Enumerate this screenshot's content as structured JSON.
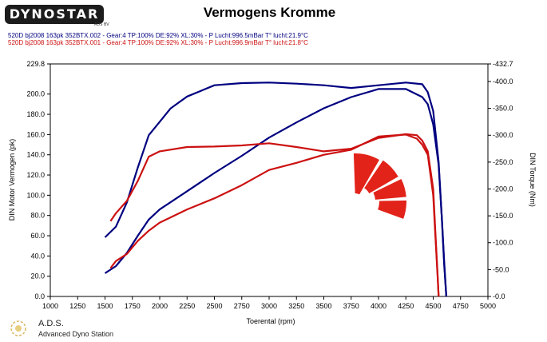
{
  "header": {
    "logo": "DYNOSTAR",
    "logo_sub": "ADS BV",
    "title": "Vermogens Kromme"
  },
  "legend": {
    "run1": "520D bj2008 163pk 352BTX.002 - Gear:4 TP:100% DE:92% XL:30%   - P Lucht:996.5mBar T° lucht:21.9°C",
    "run2": "520D bj2008 163pk 352BTX.001 - Gear:4 TP:100% DE:92% XL:30%   - P Lucht:996.9mBar T° lucht:21.8°C"
  },
  "footer": {
    "brand": "A.D.S.",
    "subtitle": "Advanced Dyno Station"
  },
  "colors": {
    "run1": "#000080",
    "run2": "#cc1111",
    "watermark": "#e2231a"
  },
  "chart_data": {
    "type": "line",
    "xlabel": "Toerental (rpm)",
    "ylabel_left": "DIN Motor Vermogen (pk)",
    "ylabel_right": "DIN Torque (Nm)",
    "xlim": [
      1000,
      5000
    ],
    "x_ticks": [
      "1000",
      "1250",
      "1500",
      "1750",
      "2000",
      "2250",
      "2500",
      "2750",
      "3000",
      "3250",
      "3500",
      "3750",
      "4000",
      "4250",
      "4500",
      "4750",
      "5000"
    ],
    "ylim_left": [
      0,
      229.8
    ],
    "y_left_ticks": [
      "0.0",
      "20.0",
      "40.0",
      "60.0",
      "80.0",
      "100.0",
      "120.0",
      "140.0",
      "160.0",
      "180.0",
      "200.0",
      "229.8"
    ],
    "ylim_right": [
      0,
      432.7
    ],
    "y_right_ticks": [
      "-0.0",
      "-50.0",
      "-100.0",
      "-150.0",
      "-200.0",
      "-250.0",
      "-300.0",
      "-350.0",
      "-400.0",
      "-432.7"
    ],
    "grid": false,
    "series": [
      {
        "name": "520D bj2008 163pk 352BTX.002",
        "measure": "torque",
        "color": "#000080",
        "x": [
          1500,
          1600,
          1700,
          1800,
          1900,
          2000,
          2100,
          2250,
          2500,
          2750,
          3000,
          3250,
          3500,
          3750,
          4000,
          4250,
          4400,
          4450,
          4500,
          4550,
          4580,
          4600,
          4620
        ],
        "y": [
          110,
          130,
          175,
          240,
          300,
          325,
          350,
          372,
          393,
          397,
          398,
          396,
          393,
          388,
          393,
          398,
          395,
          380,
          345,
          250,
          140,
          60,
          0
        ]
      },
      {
        "name": "520D bj2008 163pk 352BTX.002",
        "measure": "power",
        "color": "#000080",
        "x": [
          1500,
          1600,
          1700,
          1800,
          1900,
          2000,
          2250,
          2500,
          2750,
          3000,
          3250,
          3500,
          3750,
          4000,
          4250,
          4400,
          4450,
          4500,
          4550,
          4580,
          4600,
          4620
        ],
        "y": [
          23,
          30,
          43,
          60,
          76,
          86,
          104,
          122,
          139,
          157,
          172,
          186,
          197,
          205,
          205,
          197,
          190,
          170,
          130,
          75,
          35,
          0
        ]
      },
      {
        "name": "520D bj2008 163pk 352BTX.001",
        "measure": "torque",
        "color": "#cc1111",
        "x": [
          1550,
          1600,
          1700,
          1800,
          1900,
          2000,
          2250,
          2500,
          2750,
          3000,
          3250,
          3500,
          3750,
          4000,
          4250,
          4350,
          4400,
          4450,
          4500,
          4520,
          4540,
          4550
        ],
        "y": [
          140,
          155,
          178,
          215,
          260,
          270,
          278,
          279,
          281,
          285,
          278,
          270,
          275,
          295,
          302,
          300,
          290,
          270,
          200,
          120,
          40,
          0
        ]
      },
      {
        "name": "520D bj2008 163pk 352BTX.001",
        "measure": "power",
        "color": "#cc1111",
        "x": [
          1550,
          1600,
          1700,
          1800,
          1900,
          2000,
          2250,
          2500,
          2750,
          3000,
          3250,
          3500,
          3750,
          4000,
          4250,
          4350,
          4400,
          4450,
          4500,
          4520,
          4540,
          4550
        ],
        "y": [
          28,
          35,
          42,
          55,
          65,
          73,
          86,
          97,
          110,
          125,
          132,
          140,
          145,
          158,
          160,
          156,
          150,
          140,
          100,
          60,
          20,
          0
        ]
      }
    ]
  }
}
